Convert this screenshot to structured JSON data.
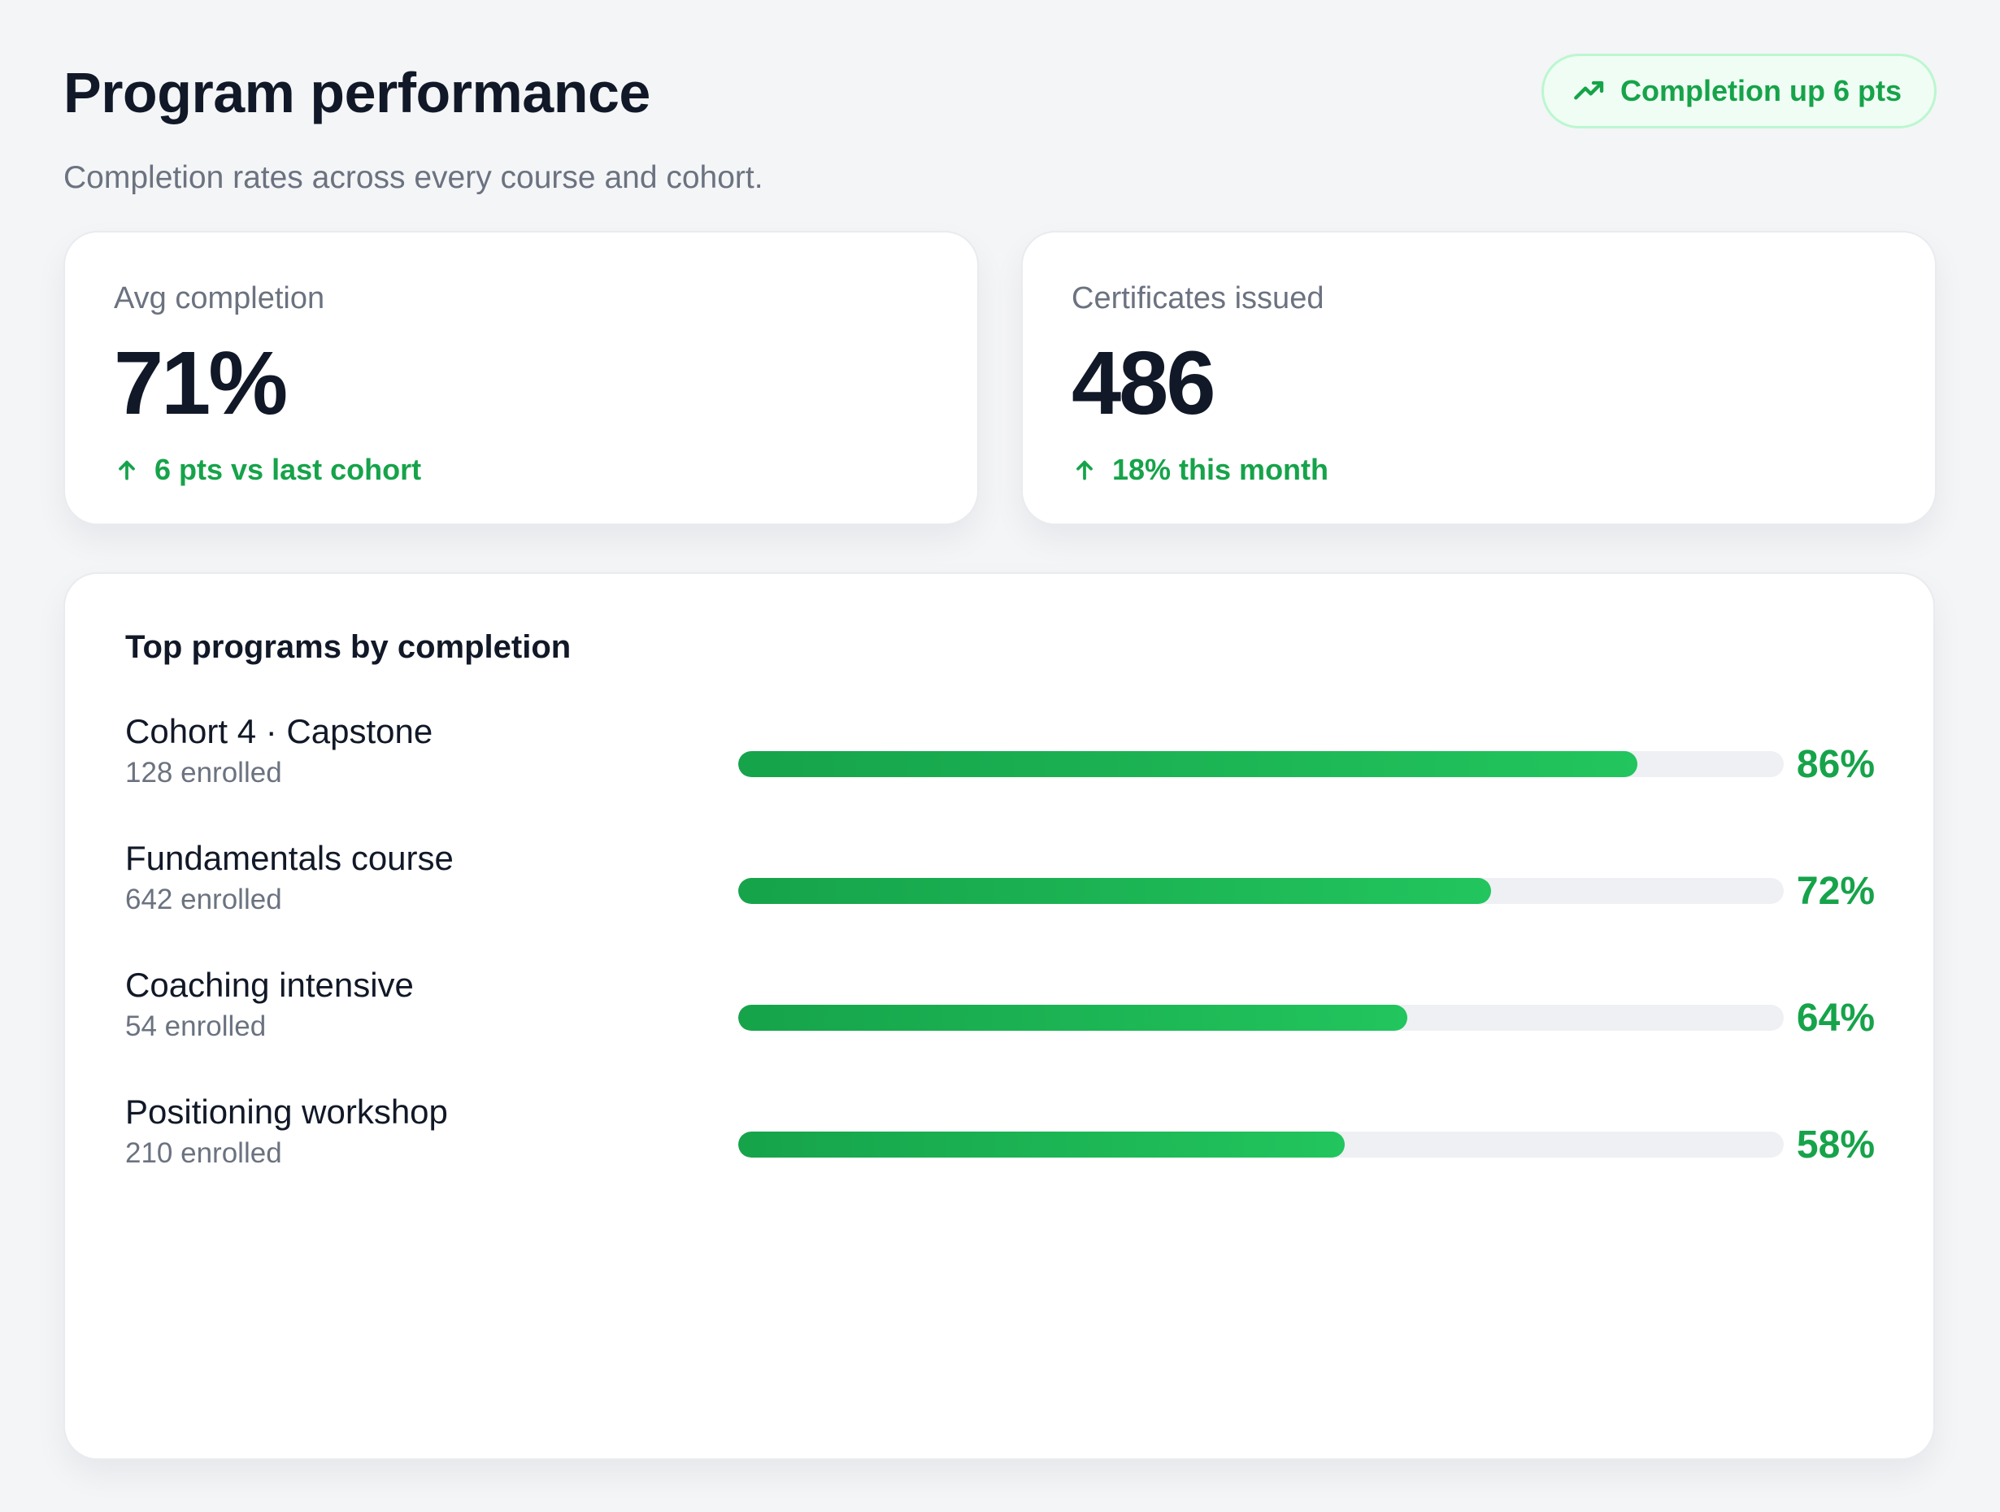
{
  "header": {
    "title": "Program performance",
    "subtitle": "Completion rates across every course and cohort.",
    "trend_badge": "Completion up 6 pts"
  },
  "stats": [
    {
      "label": "Avg completion",
      "value": "71%",
      "delta": "6 pts vs last cohort"
    },
    {
      "label": "Certificates issued",
      "value": "486",
      "delta": "18% this month"
    }
  ],
  "programs": {
    "title": "Top programs by completion",
    "items": [
      {
        "name": "Cohort 4 · Capstone",
        "enrolled": "128 enrolled",
        "pct_label": "86%",
        "completion": 86
      },
      {
        "name": "Fundamentals course",
        "enrolled": "642 enrolled",
        "pct_label": "72%",
        "completion": 72
      },
      {
        "name": "Coaching intensive",
        "enrolled": "54 enrolled",
        "pct_label": "64%",
        "completion": 64
      },
      {
        "name": "Positioning workshop",
        "enrolled": "210 enrolled",
        "pct_label": "58%",
        "completion": 58
      }
    ]
  },
  "colors": {
    "accent": "#16a34a",
    "accent_light": "#22c55e",
    "badge_bg": "#f0fdf4",
    "badge_border": "#bbf7d0",
    "track": "#eef0f3"
  },
  "icons": {
    "trend_badge": "trending-up-icon",
    "delta": "arrow-up-icon"
  }
}
